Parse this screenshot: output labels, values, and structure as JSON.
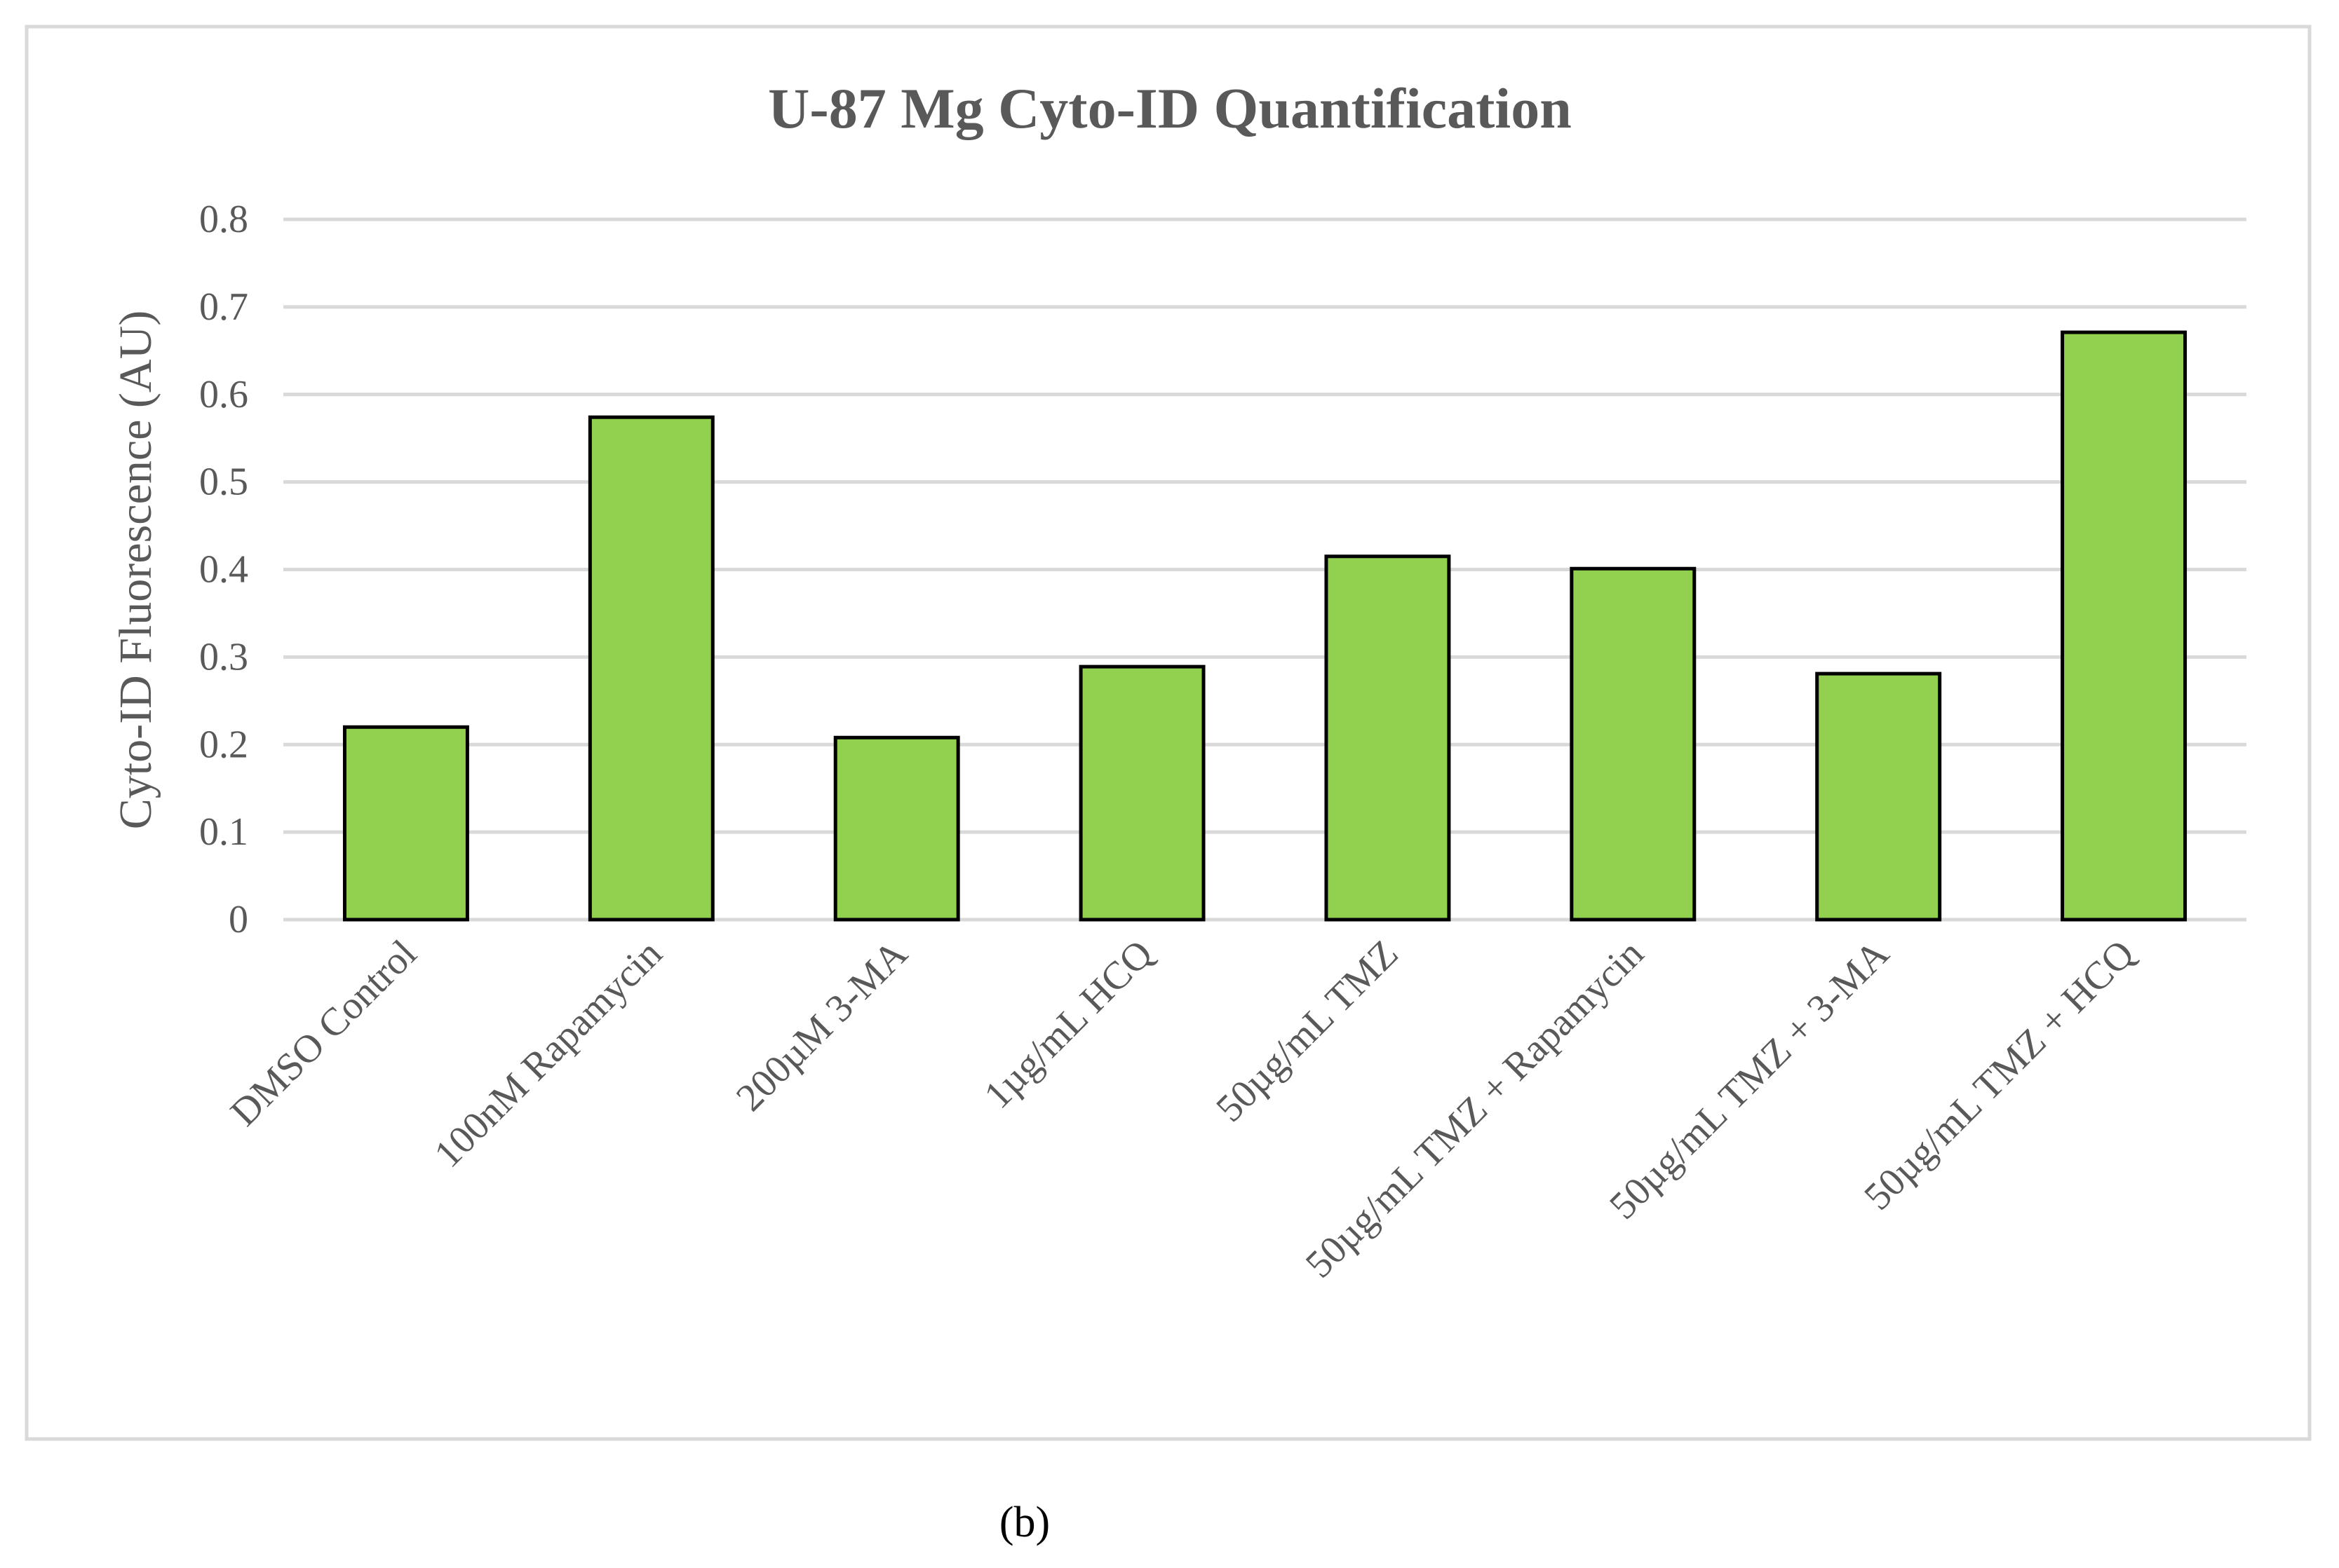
{
  "chart_data": {
    "type": "bar",
    "title": "U-87 Mg Cyto-ID Quantification",
    "xlabel": "",
    "ylabel": "Cyto-ID Fluorescence (AU)",
    "ylim": [
      0,
      0.8
    ],
    "yticks": [
      "0",
      "0.1",
      "0.2",
      "0.3",
      "0.4",
      "0.5",
      "0.6",
      "0.7",
      "0.8"
    ],
    "grid": true,
    "categories": [
      "DMSO Control",
      "100nM Rapamycin",
      "200µM 3-MA",
      "1µg/mL HCQ",
      "50µg/mL TMZ",
      "50µg/mL TMZ + Rapamycin",
      "50µg/mL TMZ + 3-MA",
      "50µg/mL TMZ + HCQ"
    ],
    "values": [
      0.22,
      0.574,
      0.208,
      0.289,
      0.415,
      0.401,
      0.281,
      0.671
    ],
    "bar_color": "#92d050",
    "bar_edge_color": "#000000",
    "grid_color": "#d9d9d9"
  },
  "caption": "(b)"
}
